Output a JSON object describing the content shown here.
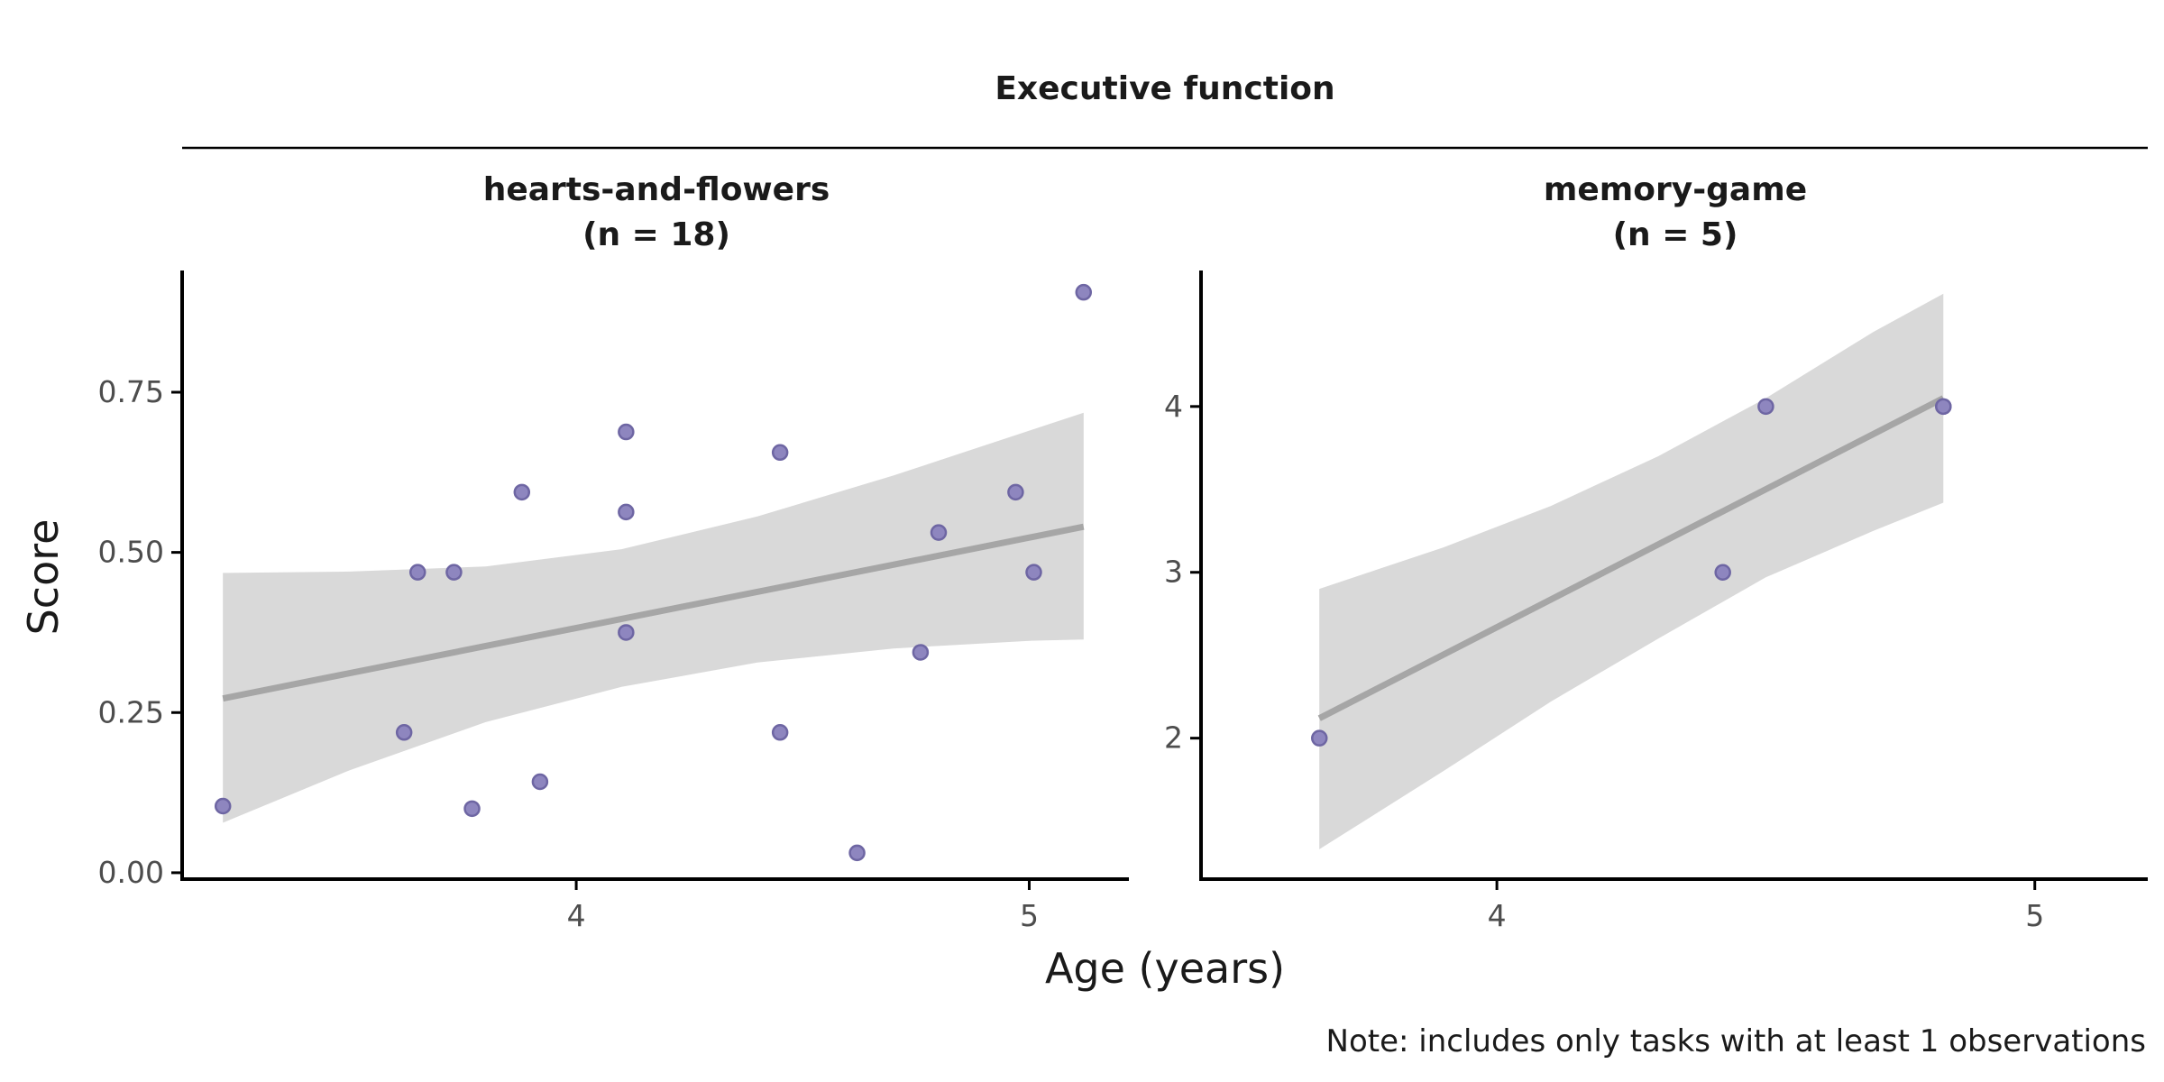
{
  "chart_data": {
    "type": "scatter",
    "strip_title": "Executive function",
    "xlabel": "Age (years)",
    "ylabel": "Score",
    "note": "Note: includes only tasks with at least 1 observations",
    "grid": false,
    "panels": [
      {
        "title_line1": "hearts-and-flowers",
        "title_line2": "(n = 18)",
        "xlim": [
          3.13,
          5.22
        ],
        "ylim": [
          -0.01,
          0.94
        ],
        "xticks": [
          4,
          5
        ],
        "xtick_labels": [
          "4",
          "5"
        ],
        "yticks": [
          0,
          0.25,
          0.5,
          0.75
        ],
        "ytick_labels": [
          "0.00",
          "0.25",
          "0.50",
          "0.75"
        ],
        "points": [
          {
            "x": 3.22,
            "y": 0.104
          },
          {
            "x": 3.62,
            "y": 0.219
          },
          {
            "x": 3.65,
            "y": 0.469
          },
          {
            "x": 3.73,
            "y": 0.469
          },
          {
            "x": 3.77,
            "y": 0.1
          },
          {
            "x": 3.88,
            "y": 0.594
          },
          {
            "x": 3.92,
            "y": 0.142
          },
          {
            "x": 4.11,
            "y": 0.688
          },
          {
            "x": 4.11,
            "y": 0.563
          },
          {
            "x": 4.11,
            "y": 0.375
          },
          {
            "x": 4.45,
            "y": 0.656
          },
          {
            "x": 4.45,
            "y": 0.219
          },
          {
            "x": 4.62,
            "y": 0.031
          },
          {
            "x": 4.76,
            "y": 0.344
          },
          {
            "x": 4.8,
            "y": 0.531
          },
          {
            "x": 4.97,
            "y": 0.594
          },
          {
            "x": 5.01,
            "y": 0.469
          },
          {
            "x": 5.12,
            "y": 0.906
          }
        ],
        "fit": {
          "x": [
            3.22,
            5.12
          ],
          "y": [
            0.272,
            0.54
          ]
        },
        "ci": {
          "x": [
            3.22,
            3.5,
            3.8,
            4.1,
            4.4,
            4.7,
            5.0,
            5.12
          ],
          "upper": [
            0.468,
            0.47,
            0.478,
            0.505,
            0.556,
            0.62,
            0.69,
            0.718
          ],
          "lower": [
            0.078,
            0.16,
            0.235,
            0.29,
            0.328,
            0.35,
            0.362,
            0.364
          ]
        }
      },
      {
        "title_line1": "memory-game",
        "title_line2": "(n = 5)",
        "xlim": [
          3.45,
          5.21
        ],
        "ylim": [
          1.15,
          4.82
        ],
        "xticks": [
          4,
          5
        ],
        "xtick_labels": [
          "4",
          "5"
        ],
        "yticks": [
          2,
          3,
          4
        ],
        "ytick_labels": [
          "2",
          "3",
          "4"
        ],
        "points": [
          {
            "x": 3.67,
            "y": 2
          },
          {
            "x": 4.42,
            "y": 3
          },
          {
            "x": 4.5,
            "y": 4
          },
          {
            "x": 4.83,
            "y": 4
          },
          {
            "x": 4.83,
            "y": 4
          }
        ],
        "fit": {
          "x": [
            3.67,
            4.83
          ],
          "y": [
            2.12,
            4.05
          ]
        },
        "ci": {
          "x": [
            3.67,
            3.9,
            4.1,
            4.3,
            4.5,
            4.7,
            4.83
          ],
          "upper": [
            2.9,
            3.15,
            3.4,
            3.7,
            4.05,
            4.45,
            4.68
          ],
          "lower": [
            1.33,
            1.8,
            2.22,
            2.6,
            2.97,
            3.25,
            3.42
          ]
        }
      }
    ]
  }
}
